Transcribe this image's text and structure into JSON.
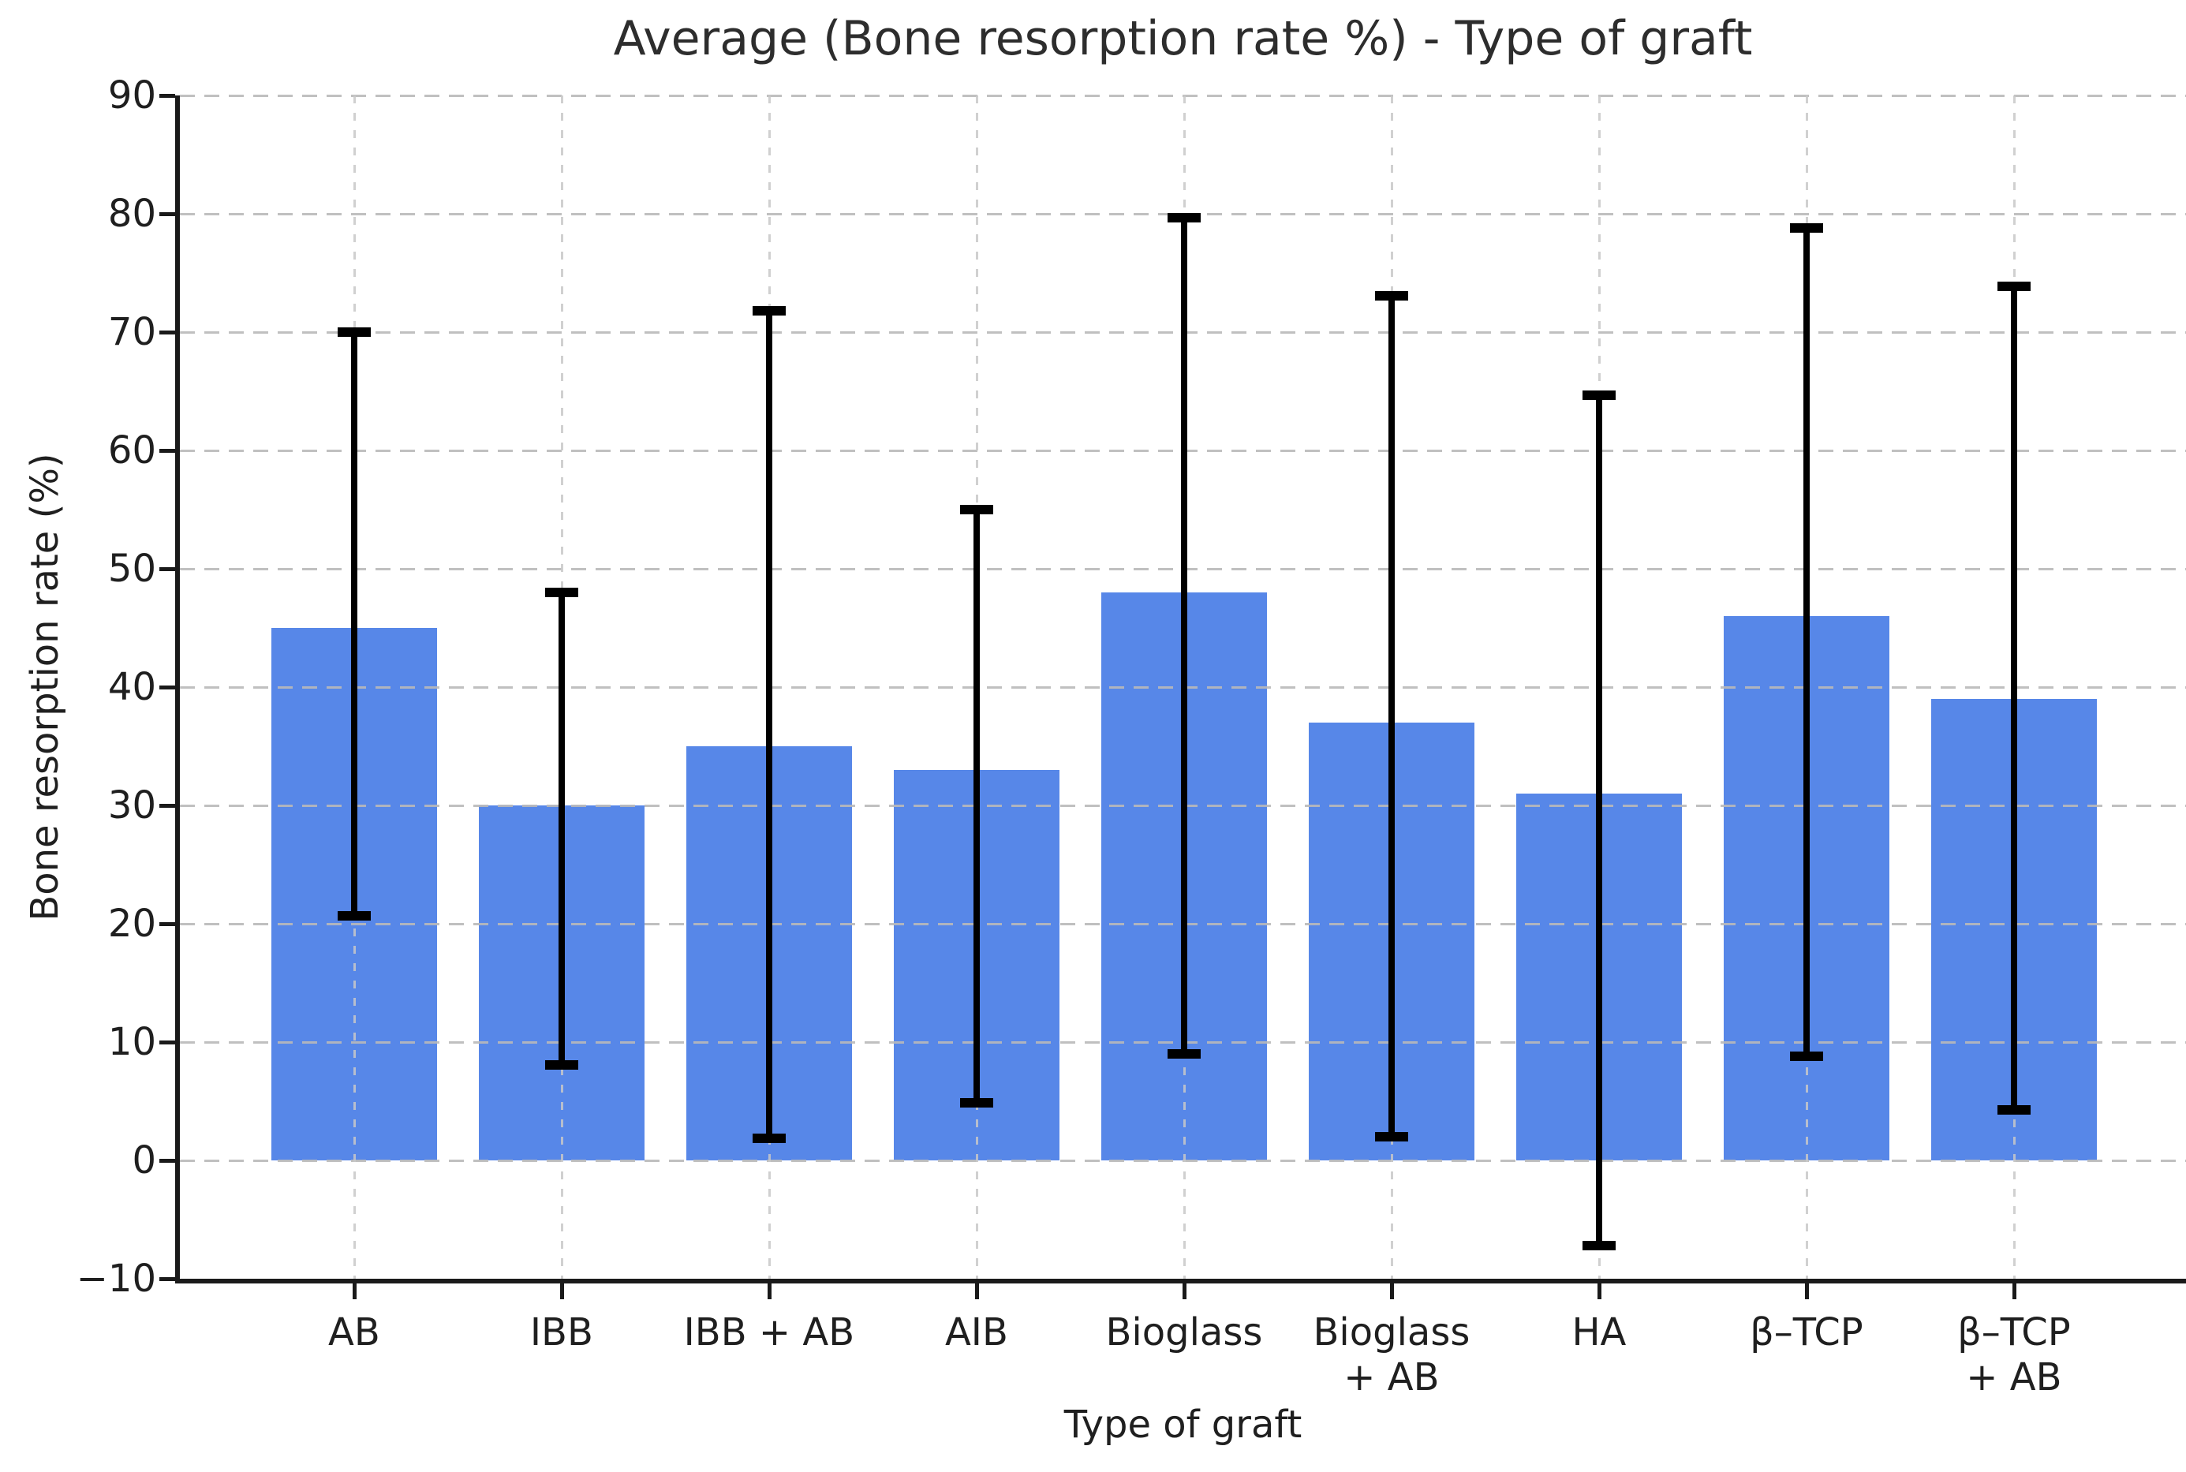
{
  "chart_data": {
    "type": "bar",
    "title": "Average (Bone resorption rate %) - Type of graft",
    "xlabel": "Type of graft",
    "ylabel": "Bone resorption rate (%)",
    "categories": [
      [
        "AB"
      ],
      [
        "IBB"
      ],
      [
        "IBB + AB"
      ],
      [
        "AIB"
      ],
      [
        "Bioglass"
      ],
      [
        "Bioglass",
        "+ AB"
      ],
      [
        "HA"
      ],
      [
        "β–TCP"
      ],
      [
        "β–TCP",
        "+ AB"
      ]
    ],
    "values": [
      45,
      30,
      35,
      33,
      48,
      37,
      31,
      46,
      39
    ],
    "error_low": [
      20.7,
      8.1,
      1.9,
      4.9,
      9.0,
      2.0,
      -7.2,
      8.8,
      4.3
    ],
    "error_high": [
      70.0,
      48.0,
      71.8,
      55.0,
      79.7,
      73.1,
      64.7,
      78.8,
      73.9
    ],
    "ylim": [
      -10,
      90
    ],
    "yticks": [
      -10,
      0,
      10,
      20,
      30,
      40,
      50,
      60,
      70,
      80,
      90
    ],
    "grid": true,
    "legend": "none",
    "bar_color": "#5787E8",
    "error_color": "#000000"
  }
}
